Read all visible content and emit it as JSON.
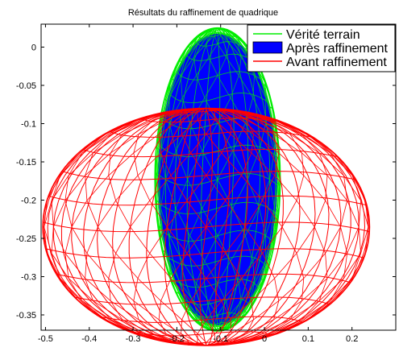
{
  "chart_data": {
    "type": "wireframe-3d",
    "title": "Résultats du raffinement de quadrique",
    "xlabel": "",
    "ylabel": "",
    "xlim": [
      -0.51,
      0.3
    ],
    "ylim": [
      -0.37,
      0.03
    ],
    "xticks": [
      -0.5,
      -0.4,
      -0.3,
      -0.2,
      -0.1,
      0,
      0.1,
      0.2
    ],
    "xtick_labels": [
      "-0.5",
      "-0.4",
      "-0.3",
      "-0.2",
      "-0.1",
      "0",
      "0.1",
      "0.2"
    ],
    "yticks": [
      0,
      -0.05,
      -0.1,
      -0.15,
      -0.2,
      -0.25,
      -0.3,
      -0.35
    ],
    "ytick_labels": [
      "0",
      "-0.05",
      "-0.1",
      "-0.15",
      "-0.2",
      "-0.25",
      "-0.3",
      "-0.35"
    ],
    "grid": false,
    "legend_position": "top-right",
    "series": [
      {
        "name": "Vérité terrain",
        "kind": "line",
        "color": "#00ee00",
        "ellipsoid": {
          "center": [
            -0.107,
            -0.173
          ],
          "radius": [
            0.143,
            0.198
          ]
        }
      },
      {
        "name": "Après raffinement",
        "kind": "patch",
        "color": "#0000ff",
        "ellipsoid": {
          "center": [
            -0.107,
            -0.173
          ],
          "radius": [
            0.135,
            0.19
          ]
        }
      },
      {
        "name": "Avant raffinement",
        "kind": "line",
        "color": "#ff0000",
        "ellipsoid": {
          "center": [
            -0.133,
            -0.235
          ],
          "radius": [
            0.373,
            0.155
          ]
        }
      }
    ]
  }
}
